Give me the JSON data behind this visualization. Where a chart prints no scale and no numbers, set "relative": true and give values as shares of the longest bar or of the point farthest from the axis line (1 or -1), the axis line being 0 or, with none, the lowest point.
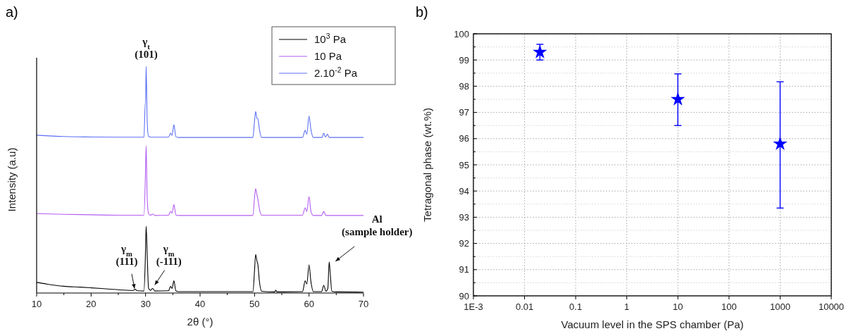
{
  "chart_data": [
    {
      "type": "line",
      "title": "a)",
      "xlabel": "2θ (°)",
      "ylabel": "Intensity (a.u)",
      "relative": true,
      "tick_labels": "x",
      "legend": "top right",
      "line_style": "solid",
      "xlim": [
        10,
        70
      ],
      "xticks": [
        10,
        {
          "value": 15,
          "label": null
        },
        20,
        {
          "value": 25,
          "label": null
        },
        30,
        {
          "value": 35,
          "label": null
        },
        40,
        {
          "value": 45,
          "label": null
        },
        50,
        {
          "value": 55,
          "label": null
        },
        60,
        {
          "value": 65,
          "label": null
        },
        70
      ],
      "annotations": [
        {
          "text": "γ$_{t}$\n(101)",
          "x": 30.1,
          "y": 1
        },
        {
          "text": "γ$_{m}$\n(111)",
          "x": 28.1,
          "y": 0.01
        },
        {
          "text": "γ$_{m}$\n(-111)",
          "x": 31.3,
          "y": 0.02
        },
        {
          "text": "Al\n(sample holder)",
          "x": 63.7,
          "y": 0.137
        }
      ],
      "series": [
        {
          "name": "10$^{3}$ Pa",
          "color": "#000000",
          "x": [
            10,
            12,
            15,
            18,
            20,
            23,
            26,
            27.6,
            28.1,
            28.5,
            29.7,
            29.95,
            30.1,
            30.3,
            30.55,
            30.9,
            31.3,
            31.7,
            34.2,
            34.6,
            34.85,
            35.2,
            35.55,
            36,
            49.7,
            50.0,
            50.2,
            50.45,
            50.6,
            50.9,
            51.3,
            53.7,
            53.9,
            54.1,
            58.8,
            59.3,
            59.6,
            60.0,
            60.35,
            60.8,
            62.3,
            62.7,
            63.1,
            63.45,
            63.7,
            63.85,
            64.2,
            65,
            70
          ],
          "values": [
            0.047,
            0.039,
            0.03,
            0.026,
            0.023,
            0.018,
            0.013,
            0.011,
            0.016,
            0.01,
            0.009,
            0.15,
            0.295,
            0.165,
            0.02,
            0.012,
            0.02,
            0.009,
            0.01,
            0.029,
            0.02,
            0.054,
            0.01,
            0.006,
            0.006,
            0.1,
            0.17,
            0.14,
            0.128,
            0.05,
            0.008,
            0.005,
            0.012,
            0.005,
            0.006,
            0.054,
            0.04,
            0.124,
            0.05,
            0.006,
            0.006,
            0.034,
            0.008,
            0.02,
            0.137,
            0.1,
            0.008,
            0.005,
            0.004
          ]
        },
        {
          "name": "10 Pa",
          "color": "#b35ef2",
          "x": [
            10,
            15,
            20,
            25,
            29.7,
            29.95,
            30.1,
            30.3,
            30.55,
            30.9,
            31.3,
            31.7,
            34.2,
            34.6,
            34.85,
            35.2,
            35.55,
            36,
            49.7,
            50.0,
            50.2,
            50.45,
            50.6,
            50.9,
            51.3,
            58.8,
            59.3,
            59.6,
            60.0,
            60.35,
            60.8,
            62.3,
            62.7,
            63.1,
            70
          ],
          "values": [
            0.35,
            0.347,
            0.345,
            0.343,
            0.343,
            0.5,
            0.65,
            0.416,
            0.35,
            0.343,
            0.348,
            0.342,
            0.343,
            0.36,
            0.352,
            0.39,
            0.345,
            0.342,
            0.342,
            0.42,
            0.46,
            0.43,
            0.416,
            0.37,
            0.343,
            0.343,
            0.376,
            0.36,
            0.425,
            0.36,
            0.342,
            0.342,
            0.36,
            0.342,
            0.342
          ]
        },
        {
          "name": "2.10$^{-2}$ Pa",
          "color": "#5b6ef5",
          "x": [
            10,
            15,
            20,
            25,
            29.7,
            29.95,
            30.0,
            30.1,
            30.3,
            30.55,
            31,
            34.2,
            34.6,
            34.85,
            35.2,
            35.55,
            36,
            49.7,
            50.0,
            50.2,
            50.45,
            50.6,
            50.9,
            51.3,
            58.8,
            59.3,
            59.6,
            60.0,
            60.35,
            60.8,
            62.4,
            62.7,
            63.0,
            63.4,
            63.7,
            70
          ],
          "values": [
            0.696,
            0.69,
            0.688,
            0.687,
            0.687,
            0.84,
            0.84,
            1,
            0.75,
            0.69,
            0.687,
            0.687,
            0.705,
            0.695,
            0.742,
            0.69,
            0.686,
            0.686,
            0.76,
            0.8,
            0.77,
            0.77,
            0.72,
            0.686,
            0.686,
            0.717,
            0.7,
            0.78,
            0.72,
            0.686,
            0.686,
            0.705,
            0.688,
            0.7,
            0.686,
            0.686
          ]
        }
      ]
    },
    {
      "type": "scatter",
      "title": "b)",
      "xlabel": "Vacuum level in the SPS chamber (Pa)",
      "ylabel": "Tetragonal phase (wt.%)",
      "log": "x",
      "grid": true,
      "marker": "star",
      "xlim": [
        0.001,
        10000
      ],
      "xticks": [
        {
          "value": 0.001,
          "label": "1E-3"
        },
        0.01,
        0.1,
        1,
        10,
        100,
        1000,
        10000
      ],
      "ylim": [
        90,
        100
      ],
      "yticks": [
        90,
        {
          "value": 90.5,
          "label": null
        },
        91,
        {
          "value": 91.5,
          "label": null
        },
        92,
        {
          "value": 92.5,
          "label": null
        },
        93,
        {
          "value": 93.5,
          "label": null
        },
        94,
        {
          "value": 94.5,
          "label": null
        },
        95,
        {
          "value": 95.5,
          "label": null
        },
        96,
        {
          "value": 96.5,
          "label": null
        },
        97,
        {
          "value": 97.5,
          "label": null
        },
        98,
        {
          "value": 98.5,
          "label": null
        },
        99,
        {
          "value": 99.5,
          "label": null
        },
        100
      ],
      "series": [
        {
          "color": "#0000ff",
          "x": [
            0.02,
            10,
            1000
          ],
          "values": [
            99.3,
            97.5,
            95.8
          ],
          "errors": [
            [
              99.0,
              99.6
            ],
            [
              96.5,
              98.47
            ],
            [
              93.35,
              98.17
            ]
          ]
        }
      ]
    }
  ]
}
